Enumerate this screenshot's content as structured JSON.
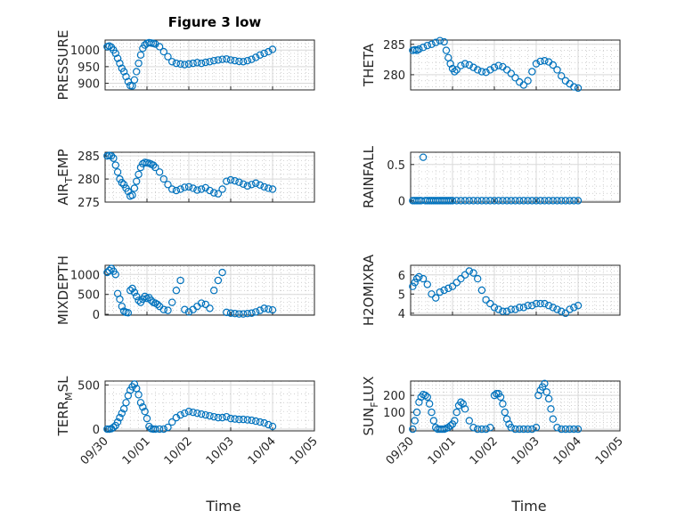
{
  "chart_data": {
    "type": "scatter",
    "title": "Figure 3 low",
    "xlabel": "Time",
    "x_tick_labels": [
      "09/30",
      "10/01",
      "10/02",
      "10/03",
      "10/04",
      "10/05"
    ],
    "xlim": [
      0,
      5
    ],
    "grid": true,
    "marker": "o",
    "color": "#0072bd",
    "panels": [
      {
        "name": "PRESSURE",
        "ylabel": "PRESSURE",
        "ylim": [
          880,
          1030
        ],
        "yticks": [
          900,
          950,
          1000
        ],
        "ytick_labels": [
          "900",
          "950",
          "1000"
        ],
        "x": [
          0.05,
          0.1,
          0.15,
          0.2,
          0.25,
          0.3,
          0.35,
          0.4,
          0.45,
          0.5,
          0.55,
          0.6,
          0.65,
          0.7,
          0.75,
          0.8,
          0.85,
          0.9,
          0.95,
          1.0,
          1.05,
          1.1,
          1.15,
          1.2,
          1.3,
          1.4,
          1.5,
          1.6,
          1.7,
          1.8,
          1.9,
          2.0,
          2.1,
          2.2,
          2.3,
          2.4,
          2.5,
          2.6,
          2.7,
          2.8,
          2.9,
          3.0,
          3.1,
          3.2,
          3.3,
          3.4,
          3.5,
          3.6,
          3.7,
          3.8,
          3.9,
          4.0
        ],
        "y": [
          1010,
          1012,
          1008,
          1000,
          990,
          975,
          960,
          945,
          935,
          920,
          905,
          893,
          892,
          910,
          935,
          960,
          985,
          1005,
          1015,
          1020,
          1022,
          1021,
          1020,
          1018,
          1010,
          995,
          980,
          965,
          960,
          958,
          956,
          958,
          960,
          962,
          960,
          963,
          965,
          968,
          970,
          972,
          973,
          970,
          968,
          966,
          965,
          968,
          972,
          978,
          985,
          990,
          995,
          1002
        ]
      },
      {
        "name": "THETA",
        "ylabel": "THETA",
        "ylim": [
          277.5,
          285.7
        ],
        "yticks": [
          280,
          285
        ],
        "ytick_labels": [
          "280",
          "285"
        ],
        "x": [
          0.05,
          0.1,
          0.15,
          0.2,
          0.3,
          0.4,
          0.5,
          0.6,
          0.7,
          0.8,
          0.85,
          0.9,
          0.95,
          1.0,
          1.05,
          1.1,
          1.2,
          1.3,
          1.4,
          1.5,
          1.6,
          1.7,
          1.8,
          1.9,
          2.0,
          2.1,
          2.2,
          2.3,
          2.4,
          2.5,
          2.6,
          2.7,
          2.8,
          2.9,
          3.0,
          3.1,
          3.2,
          3.3,
          3.4,
          3.5,
          3.6,
          3.7,
          3.8,
          3.9,
          4.0
        ],
        "y": [
          284.0,
          284.1,
          284.0,
          284.2,
          284.5,
          284.8,
          285.0,
          285.3,
          285.6,
          285.4,
          284.0,
          282.8,
          281.8,
          281.0,
          280.5,
          280.8,
          281.5,
          281.8,
          281.6,
          281.2,
          280.8,
          280.5,
          280.4,
          280.8,
          281.2,
          281.5,
          281.3,
          280.8,
          280.2,
          279.5,
          278.8,
          278.3,
          279.0,
          280.5,
          281.8,
          282.2,
          282.3,
          282.1,
          281.6,
          280.8,
          279.8,
          279.0,
          278.5,
          278.0,
          277.8
        ]
      },
      {
        "name": "AIR_TEMP",
        "ylabel": "AIR_TEMP",
        "ylim": [
          275,
          285.8
        ],
        "yticks": [
          275,
          280,
          285
        ],
        "ytick_labels": [
          "275",
          "280",
          "285"
        ],
        "x": [
          0.05,
          0.1,
          0.15,
          0.2,
          0.25,
          0.3,
          0.35,
          0.4,
          0.45,
          0.5,
          0.55,
          0.6,
          0.65,
          0.7,
          0.75,
          0.8,
          0.85,
          0.9,
          0.95,
          1.0,
          1.05,
          1.1,
          1.15,
          1.2,
          1.3,
          1.4,
          1.5,
          1.6,
          1.7,
          1.8,
          1.9,
          2.0,
          2.1,
          2.2,
          2.3,
          2.4,
          2.5,
          2.6,
          2.7,
          2.8,
          2.9,
          3.0,
          3.1,
          3.2,
          3.3,
          3.4,
          3.5,
          3.6,
          3.7,
          3.8,
          3.9,
          4.0
        ],
        "y": [
          285,
          285.1,
          285,
          284.5,
          283,
          281.5,
          280,
          279.2,
          278.8,
          278,
          277.3,
          276.3,
          276.5,
          278,
          279.5,
          281,
          282.5,
          283.3,
          283.6,
          283.5,
          283.4,
          283.2,
          283,
          282.5,
          281.5,
          280,
          278.8,
          277.8,
          277.5,
          277.8,
          278.2,
          278.3,
          278.0,
          277.6,
          277.8,
          278.1,
          277.5,
          277.0,
          276.8,
          277.8,
          279.5,
          279.8,
          279.6,
          279.3,
          278.9,
          278.5,
          278.8,
          279.1,
          278.7,
          278.3,
          278.0,
          277.8
        ]
      },
      {
        "name": "RAINFALL",
        "ylabel": "RAINFALL",
        "ylim": [
          -0.02,
          0.67
        ],
        "yticks": [
          0,
          0.5
        ],
        "ytick_labels": [
          "0",
          "0.5"
        ],
        "x": [
          0.05,
          0.1,
          0.15,
          0.2,
          0.25,
          0.3,
          0.35,
          0.4,
          0.45,
          0.5,
          0.55,
          0.6,
          0.65,
          0.7,
          0.75,
          0.8,
          0.85,
          0.9,
          0.95,
          1.0,
          1.1,
          1.2,
          1.3,
          1.4,
          1.5,
          1.6,
          1.7,
          1.8,
          1.9,
          2.0,
          2.1,
          2.2,
          2.3,
          2.4,
          2.5,
          2.6,
          2.7,
          2.8,
          2.9,
          3.0,
          3.1,
          3.2,
          3.3,
          3.4,
          3.5,
          3.6,
          3.7,
          3.8,
          3.9,
          4.0
        ],
        "y": [
          0,
          0,
          0,
          0,
          0,
          0.6,
          0,
          0,
          0,
          0,
          0,
          0,
          0,
          0,
          0,
          0,
          0,
          0,
          0,
          0,
          0,
          0,
          0,
          0,
          0,
          0,
          0,
          0,
          0,
          0,
          0,
          0,
          0,
          0,
          0,
          0,
          0,
          0,
          0,
          0,
          0,
          0,
          0,
          0,
          0,
          0,
          0,
          0,
          0,
          0
        ]
      },
      {
        "name": "MIXDEPTH",
        "ylabel": "MIXDEPTH",
        "ylim": [
          -20,
          1230
        ],
        "yticks": [
          0,
          500,
          1000
        ],
        "ytick_labels": [
          "0",
          "500",
          "1000"
        ],
        "x": [
          0.05,
          0.1,
          0.15,
          0.2,
          0.25,
          0.3,
          0.35,
          0.4,
          0.45,
          0.5,
          0.55,
          0.6,
          0.65,
          0.7,
          0.75,
          0.8,
          0.85,
          0.9,
          0.95,
          1.0,
          1.05,
          1.1,
          1.15,
          1.2,
          1.25,
          1.3,
          1.4,
          1.5,
          1.6,
          1.7,
          1.8,
          1.9,
          2.0,
          2.1,
          2.2,
          2.3,
          2.4,
          2.5,
          2.6,
          2.7,
          2.8,
          2.9,
          3.0,
          3.1,
          3.2,
          3.3,
          3.4,
          3.5,
          3.6,
          3.7,
          3.8,
          3.9,
          4.0
        ],
        "y": [
          1050,
          1100,
          1150,
          1080,
          1000,
          520,
          380,
          200,
          80,
          50,
          40,
          600,
          650,
          550,
          450,
          350,
          300,
          380,
          450,
          400,
          420,
          350,
          300,
          280,
          250,
          200,
          120,
          100,
          300,
          600,
          850,
          120,
          60,
          120,
          200,
          280,
          250,
          150,
          600,
          850,
          1050,
          50,
          30,
          20,
          10,
          10,
          20,
          30,
          60,
          100,
          150,
          130,
          110
        ]
      },
      {
        "name": "H2OMIXRA",
        "ylabel": "H2OMIXRA",
        "ylim": [
          3.9,
          6.5
        ],
        "yticks": [
          4,
          5,
          6
        ],
        "ytick_labels": [
          "4",
          "5",
          "6"
        ],
        "x": [
          0.05,
          0.1,
          0.15,
          0.2,
          0.3,
          0.4,
          0.5,
          0.6,
          0.7,
          0.8,
          0.9,
          1.0,
          1.1,
          1.2,
          1.3,
          1.4,
          1.5,
          1.6,
          1.7,
          1.8,
          1.9,
          2.0,
          2.1,
          2.2,
          2.3,
          2.4,
          2.5,
          2.6,
          2.7,
          2.8,
          2.9,
          3.0,
          3.1,
          3.2,
          3.3,
          3.4,
          3.5,
          3.6,
          3.7,
          3.8,
          3.9,
          4.0
        ],
        "y": [
          5.4,
          5.6,
          5.8,
          5.9,
          5.8,
          5.5,
          5.0,
          4.8,
          5.1,
          5.2,
          5.3,
          5.4,
          5.6,
          5.8,
          6.0,
          6.2,
          6.1,
          5.8,
          5.2,
          4.7,
          4.5,
          4.3,
          4.2,
          4.1,
          4.1,
          4.2,
          4.2,
          4.3,
          4.3,
          4.4,
          4.4,
          4.5,
          4.5,
          4.5,
          4.4,
          4.3,
          4.2,
          4.1,
          4.0,
          4.2,
          4.3,
          4.4
        ]
      },
      {
        "name": "TERR_MSL",
        "ylabel": "TERR_MSL",
        "ylim": [
          -20,
          545
        ],
        "yticks": [
          0,
          500
        ],
        "ytick_labels": [
          "0",
          "500"
        ],
        "x": [
          0.05,
          0.1,
          0.15,
          0.2,
          0.25,
          0.3,
          0.35,
          0.4,
          0.45,
          0.5,
          0.55,
          0.6,
          0.65,
          0.7,
          0.75,
          0.8,
          0.85,
          0.9,
          0.95,
          1.0,
          1.05,
          1.1,
          1.15,
          1.2,
          1.3,
          1.4,
          1.5,
          1.6,
          1.7,
          1.8,
          1.9,
          2.0,
          2.1,
          2.2,
          2.3,
          2.4,
          2.5,
          2.6,
          2.7,
          2.8,
          2.9,
          3.0,
          3.1,
          3.2,
          3.3,
          3.4,
          3.5,
          3.6,
          3.7,
          3.8,
          3.9,
          4.0
        ],
        "y": [
          0,
          0,
          5,
          20,
          40,
          80,
          130,
          180,
          230,
          300,
          380,
          440,
          480,
          510,
          460,
          390,
          300,
          250,
          200,
          120,
          30,
          5,
          0,
          0,
          0,
          0,
          20,
          80,
          130,
          160,
          180,
          200,
          190,
          180,
          170,
          160,
          150,
          140,
          130,
          130,
          140,
          120,
          115,
          110,
          110,
          105,
          100,
          90,
          80,
          70,
          50,
          30
        ]
      },
      {
        "name": "SUN_FLUX",
        "ylabel": "SUN_FLUX",
        "ylim": [
          -10,
          285
        ],
        "yticks": [
          0,
          100,
          200
        ],
        "ytick_labels": [
          "0",
          "100",
          "200"
        ],
        "x": [
          0.05,
          0.1,
          0.15,
          0.2,
          0.25,
          0.3,
          0.35,
          0.4,
          0.45,
          0.5,
          0.55,
          0.6,
          0.65,
          0.7,
          0.75,
          0.8,
          0.85,
          0.9,
          0.95,
          1.0,
          1.05,
          1.1,
          1.15,
          1.2,
          1.25,
          1.3,
          1.4,
          1.5,
          1.6,
          1.7,
          1.8,
          1.9,
          2.0,
          2.05,
          2.1,
          2.15,
          2.2,
          2.25,
          2.3,
          2.35,
          2.4,
          2.5,
          2.6,
          2.7,
          2.8,
          2.9,
          3.0,
          3.05,
          3.1,
          3.15,
          3.2,
          3.25,
          3.3,
          3.35,
          3.4,
          3.5,
          3.6,
          3.7,
          3.8,
          3.9,
          4.0
        ],
        "y": [
          0,
          50,
          100,
          160,
          190,
          205,
          200,
          190,
          150,
          100,
          50,
          10,
          0,
          0,
          0,
          0,
          5,
          10,
          20,
          30,
          50,
          100,
          140,
          160,
          150,
          120,
          50,
          10,
          0,
          0,
          0,
          10,
          200,
          210,
          210,
          190,
          150,
          100,
          60,
          30,
          10,
          0,
          0,
          0,
          0,
          0,
          10,
          200,
          230,
          250,
          270,
          220,
          180,
          120,
          60,
          10,
          0,
          0,
          0,
          0,
          0
        ]
      }
    ]
  }
}
